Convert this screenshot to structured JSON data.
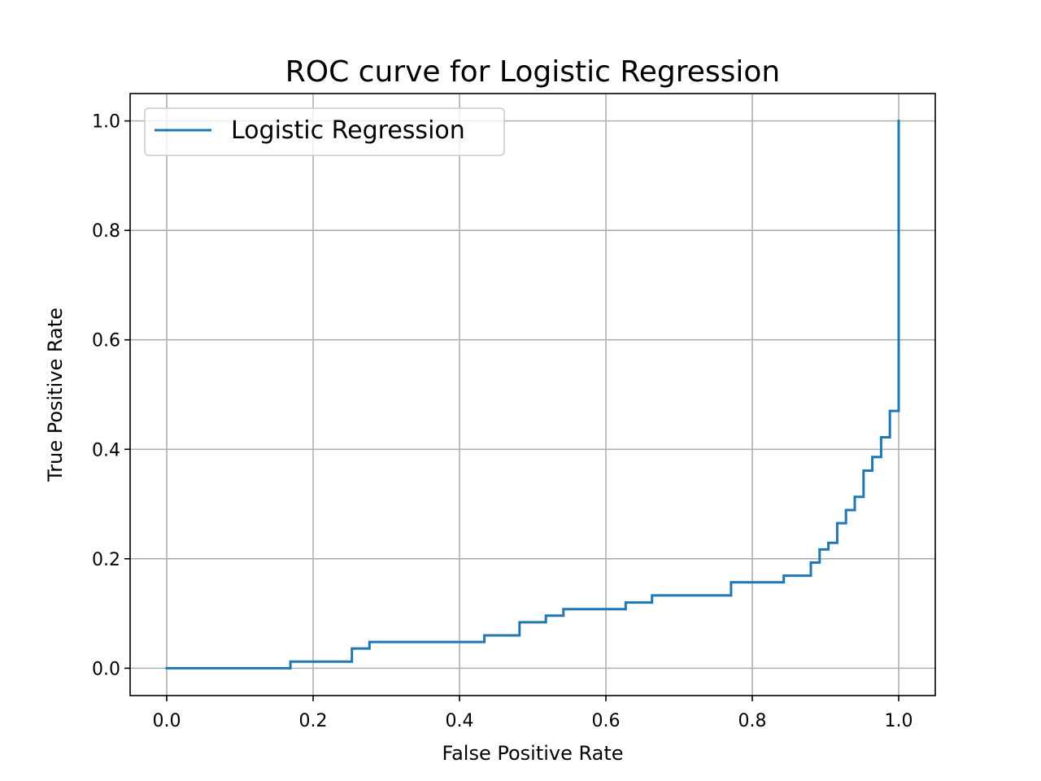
{
  "chart_data": {
    "type": "line",
    "title": "ROC curve for Logistic Regression",
    "xlabel": "False Positive Rate",
    "ylabel": "True Positive Rate",
    "xlim": [
      -0.05,
      1.05
    ],
    "ylim": [
      -0.05,
      1.05
    ],
    "xticks": [
      0.0,
      0.2,
      0.4,
      0.6,
      0.8,
      1.0
    ],
    "yticks": [
      0.0,
      0.2,
      0.4,
      0.6,
      0.8,
      1.0
    ],
    "grid": true,
    "legend_position": "upper-left",
    "series": [
      {
        "name": "Logistic Regression",
        "color": "#1f77b4",
        "drawstyle": "steps",
        "x": [
          0.0,
          0.169,
          0.169,
          0.253,
          0.253,
          0.277,
          0.277,
          0.434,
          0.434,
          0.482,
          0.482,
          0.518,
          0.518,
          0.542,
          0.542,
          0.627,
          0.627,
          0.663,
          0.663,
          0.771,
          0.771,
          0.843,
          0.843,
          0.88,
          0.88,
          0.892,
          0.892,
          0.904,
          0.904,
          0.916,
          0.916,
          0.928,
          0.928,
          0.94,
          0.94,
          0.952,
          0.952,
          0.964,
          0.964,
          0.976,
          0.976,
          0.988,
          0.988,
          1.0,
          1.0
        ],
        "y": [
          0.0,
          0.0,
          0.012,
          0.012,
          0.036,
          0.036,
          0.048,
          0.048,
          0.06,
          0.06,
          0.084,
          0.084,
          0.096,
          0.096,
          0.108,
          0.108,
          0.12,
          0.12,
          0.133,
          0.133,
          0.157,
          0.157,
          0.169,
          0.169,
          0.193,
          0.193,
          0.217,
          0.217,
          0.229,
          0.229,
          0.265,
          0.265,
          0.289,
          0.289,
          0.313,
          0.313,
          0.361,
          0.361,
          0.386,
          0.386,
          0.422,
          0.422,
          0.47,
          0.47,
          1.0
        ]
      }
    ]
  }
}
